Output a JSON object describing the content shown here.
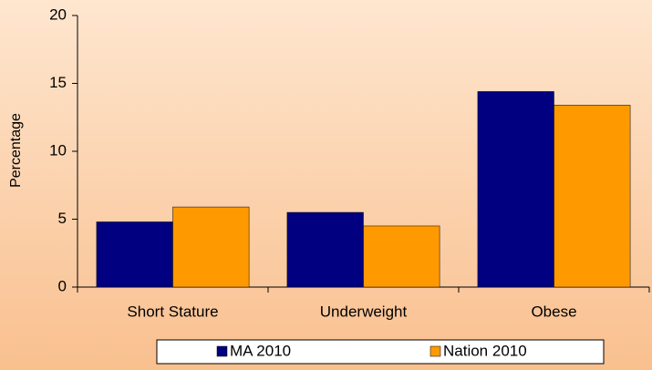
{
  "chart_data": {
    "type": "bar",
    "y_label": "Percentage",
    "categories": [
      "Short Stature",
      "Underweight",
      "Obese"
    ],
    "series": [
      {
        "name": "MA 2010",
        "color": "#000080",
        "values": [
          4.8,
          5.5,
          14.4
        ]
      },
      {
        "name": "Nation 2010",
        "color": "#ff9900",
        "values": [
          5.9,
          4.5,
          13.4
        ]
      }
    ],
    "ylim": [
      0,
      20
    ],
    "yticks": [
      0,
      5,
      10,
      15,
      20
    ],
    "grid": false,
    "legend": "bottom"
  }
}
